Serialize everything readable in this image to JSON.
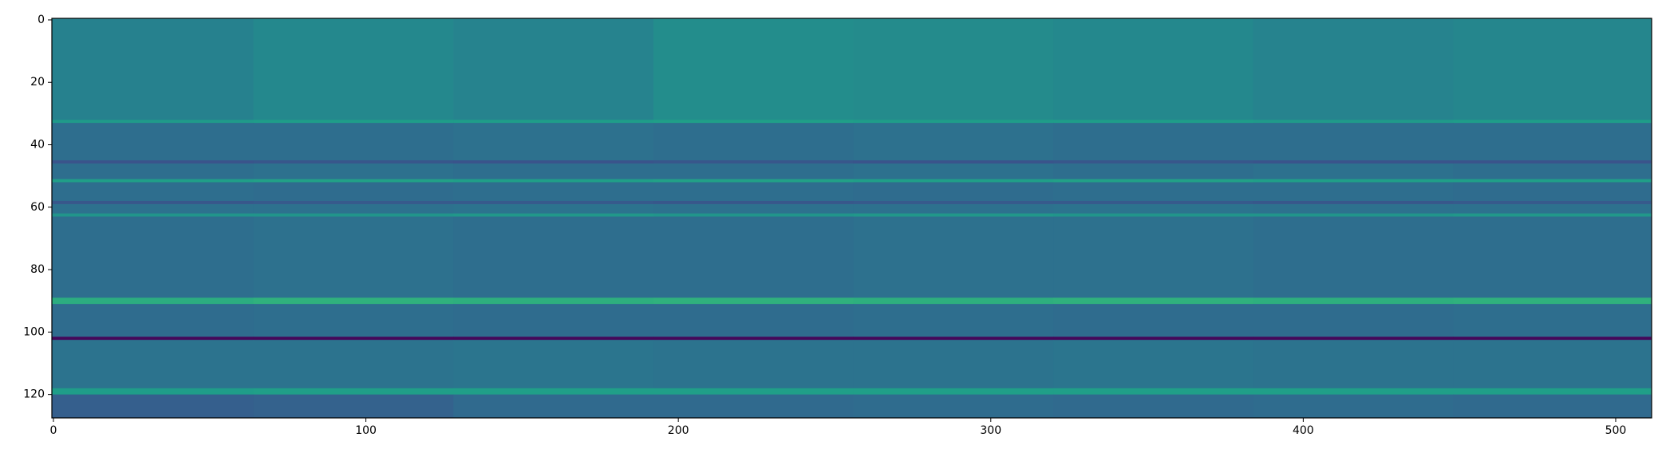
{
  "chart_data": {
    "type": "heatmap",
    "colormap": "viridis",
    "clim": [
      0,
      1
    ],
    "xlim": [
      -0.5,
      511.5
    ],
    "ylim": [
      127.5,
      -0.5
    ],
    "xticks": [
      0,
      100,
      200,
      300,
      400,
      500
    ],
    "yticks": [
      0,
      20,
      40,
      60,
      80,
      100,
      120
    ],
    "x": [
      -0.5,
      64,
      128,
      192,
      256,
      320,
      384,
      448,
      511.5
    ],
    "y": [
      -0.5,
      32,
      33,
      45,
      46,
      51,
      52,
      58,
      59,
      62,
      63,
      89,
      91,
      101.5,
      102.5,
      118,
      120,
      127.5
    ],
    "z": [
      [
        0.44,
        0.47,
        0.45,
        0.49,
        0.48,
        0.47,
        0.45,
        0.46
      ],
      [
        0.54,
        0.55,
        0.55,
        0.56,
        0.55,
        0.55,
        0.54,
        0.55
      ],
      [
        0.36,
        0.36,
        0.37,
        0.36,
        0.37,
        0.36,
        0.36,
        0.36
      ],
      [
        0.26,
        0.27,
        0.26,
        0.27,
        0.26,
        0.27,
        0.26,
        0.26
      ],
      [
        0.36,
        0.37,
        0.36,
        0.36,
        0.37,
        0.36,
        0.37,
        0.36
      ],
      [
        0.56,
        0.57,
        0.56,
        0.57,
        0.56,
        0.57,
        0.56,
        0.56
      ],
      [
        0.36,
        0.35,
        0.36,
        0.36,
        0.35,
        0.36,
        0.36,
        0.35
      ],
      [
        0.27,
        0.28,
        0.28,
        0.27,
        0.28,
        0.28,
        0.27,
        0.28
      ],
      [
        0.37,
        0.37,
        0.38,
        0.37,
        0.37,
        0.38,
        0.37,
        0.37
      ],
      [
        0.52,
        0.52,
        0.53,
        0.52,
        0.53,
        0.52,
        0.52,
        0.53
      ],
      [
        0.36,
        0.37,
        0.36,
        0.36,
        0.37,
        0.37,
        0.36,
        0.36
      ],
      [
        0.62,
        0.64,
        0.63,
        0.64,
        0.63,
        0.64,
        0.63,
        0.64
      ],
      [
        0.35,
        0.36,
        0.35,
        0.35,
        0.36,
        0.35,
        0.35,
        0.36
      ],
      [
        0.02,
        0.02,
        0.02,
        0.02,
        0.02,
        0.02,
        0.02,
        0.02
      ],
      [
        0.38,
        0.38,
        0.39,
        0.38,
        0.38,
        0.39,
        0.38,
        0.38
      ],
      [
        0.55,
        0.56,
        0.56,
        0.56,
        0.56,
        0.56,
        0.56,
        0.56
      ],
      [
        0.3,
        0.31,
        0.34,
        0.34,
        0.35,
        0.34,
        0.35,
        0.34
      ]
    ]
  }
}
